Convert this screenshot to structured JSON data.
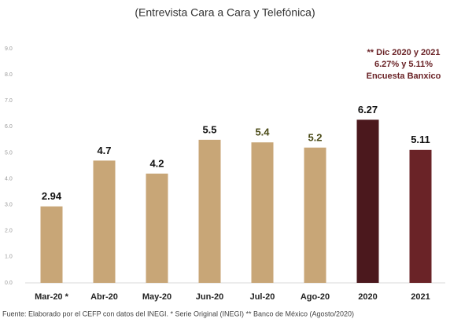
{
  "chart_data": {
    "type": "bar",
    "subtitle": "(Entrevista Cara a Cara y Telefónica)",
    "categories": [
      "Mar-20 *",
      "Abr-20",
      "May-20",
      "Jun-20",
      "Jul-20",
      "Ago-20",
      "2020",
      "2021"
    ],
    "values": [
      2.94,
      4.7,
      4.2,
      5.5,
      5.4,
      5.2,
      6.27,
      5.11
    ],
    "colors": [
      "#c8a677",
      "#c8a677",
      "#c8a677",
      "#c8a677",
      "#c8a677",
      "#c8a677",
      "#4b181d",
      "#6a2327"
    ],
    "value_label_colors": [
      "#111111",
      "#111111",
      "#111111",
      "#111111",
      "#4a4a16",
      "#4a4a16",
      "#111111",
      "#111111"
    ],
    "ylim": [
      0,
      9
    ],
    "yticks": [
      {
        "value": 0,
        "label": "0.0"
      },
      {
        "value": 1,
        "label": "1.0"
      },
      {
        "value": 2,
        "label": "2.0"
      },
      {
        "value": 3,
        "label": "3.0"
      },
      {
        "value": 4,
        "label": "4.0"
      },
      {
        "value": 5,
        "label": "5.0"
      },
      {
        "value": 6,
        "label": "6.0"
      },
      {
        "value": 7,
        "label": "7.0"
      },
      {
        "value": 8,
        "label": "8.0"
      },
      {
        "value": 9,
        "label": "9.0"
      }
    ],
    "grid": false,
    "annotation": [
      "** Dic 2020 y 2021",
      "6.27% y 5.11%",
      "Encuesta Banxico"
    ],
    "source": "Fuente: Elaborado por el CEFP con datos del INEGI. * Serie Original (INEGI) ** Banco de México (Agosto/2020)"
  }
}
